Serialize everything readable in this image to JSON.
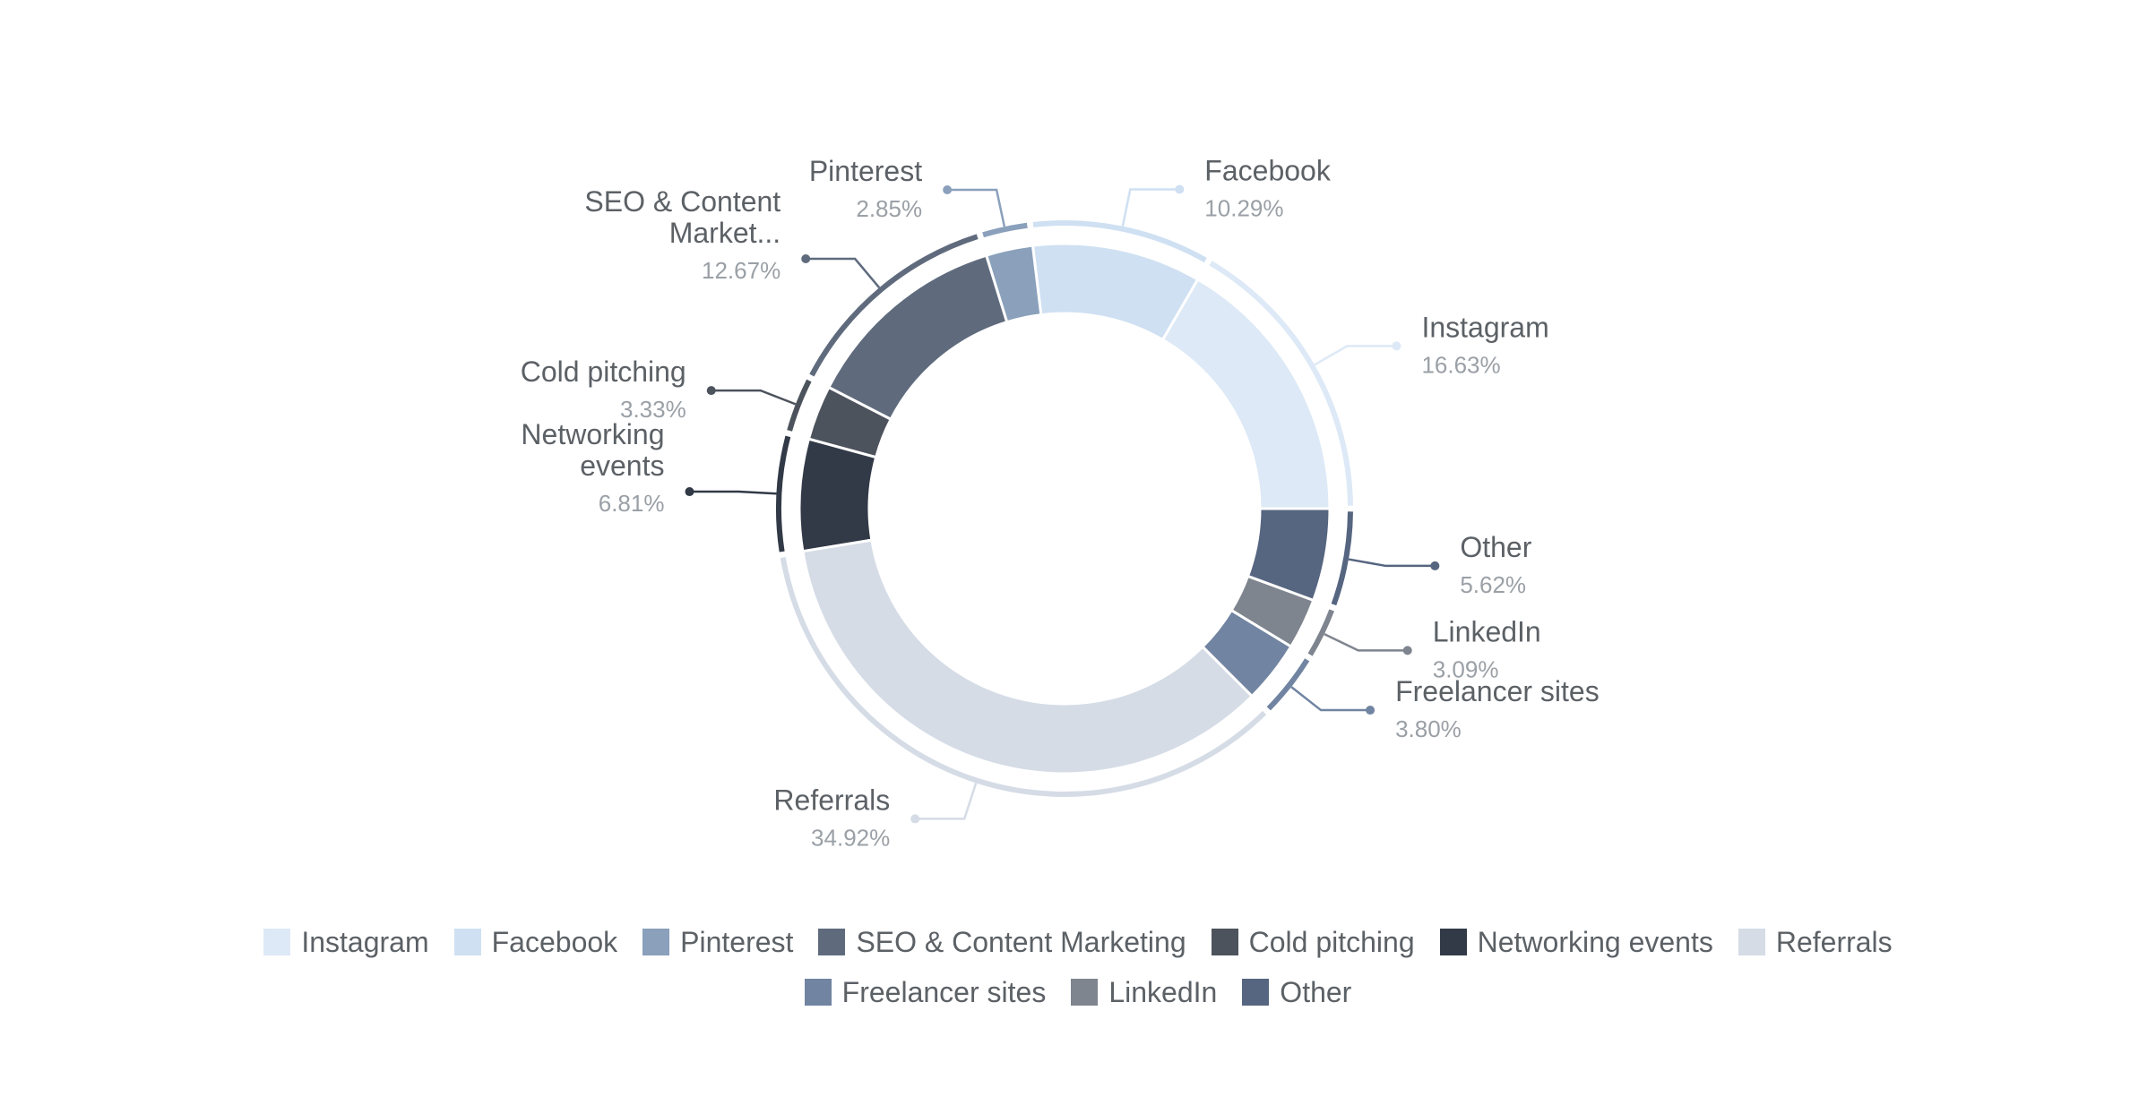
{
  "chart_data": {
    "type": "pie",
    "variant": "donut",
    "title": "",
    "legend_position": "bottom",
    "slices": [
      {
        "name": "Instagram",
        "label_lines": [
          "Instagram"
        ],
        "value": 16.63,
        "value_label": "16.63%",
        "color": "#dde9f6",
        "label_side": "right"
      },
      {
        "name": "Facebook",
        "label_lines": [
          "Facebook"
        ],
        "value": 10.29,
        "value_label": "10.29%",
        "color": "#cfe0f2",
        "label_side": "right"
      },
      {
        "name": "Pinterest",
        "label_lines": [
          "Pinterest"
        ],
        "value": 2.85,
        "value_label": "2.85%",
        "color": "#8aa0bb",
        "label_side": "left"
      },
      {
        "name": "SEO & Content Marketing",
        "label_lines": [
          "SEO & Content",
          "Market..."
        ],
        "value": 12.67,
        "value_label": "12.67%",
        "color": "#5f6b7d",
        "label_side": "left"
      },
      {
        "name": "Cold pitching",
        "label_lines": [
          "Cold pitching"
        ],
        "value": 3.33,
        "value_label": "3.33%",
        "color": "#4d535d",
        "label_side": "left"
      },
      {
        "name": "Networking events",
        "label_lines": [
          "Networking",
          "events"
        ],
        "value": 6.81,
        "value_label": "6.81%",
        "color": "#323a47",
        "label_side": "left"
      },
      {
        "name": "Referrals",
        "label_lines": [
          "Referrals"
        ],
        "value": 34.92,
        "value_label": "34.92%",
        "color": "#d5dce6",
        "label_side": "left"
      },
      {
        "name": "Freelancer sites",
        "label_lines": [
          "Freelancer sites"
        ],
        "value": 3.8,
        "value_label": "3.80%",
        "color": "#7184a1",
        "label_side": "right"
      },
      {
        "name": "LinkedIn",
        "label_lines": [
          "LinkedIn"
        ],
        "value": 3.09,
        "value_label": "3.09%",
        "color": "#7f858f",
        "label_side": "right"
      },
      {
        "name": "Other",
        "label_lines": [
          "Other"
        ],
        "value": 5.62,
        "value_label": "5.62%",
        "color": "#566580",
        "label_side": "right"
      }
    ]
  }
}
